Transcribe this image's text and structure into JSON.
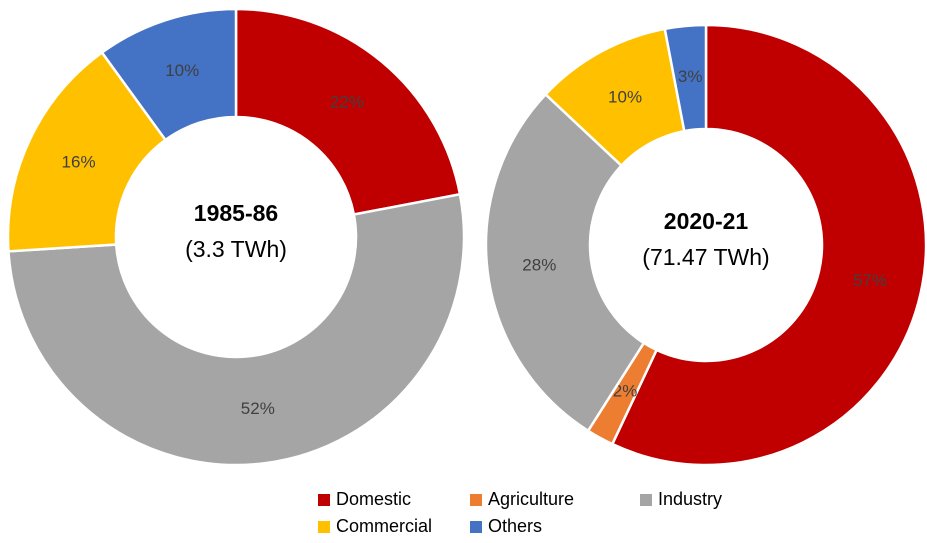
{
  "chart_data": [
    {
      "type": "pie",
      "title": "1985-86",
      "subtitle": "(3.3 TWh)",
      "categories": [
        "Domestic",
        "Industry",
        "Commercial",
        "Others"
      ],
      "values": [
        22,
        52,
        16,
        10
      ],
      "value_labels": [
        "22%",
        "52%",
        "16%",
        "10%"
      ],
      "colors": [
        "#c00000",
        "#a5a5a5",
        "#ffc000",
        "#4472c4"
      ]
    },
    {
      "type": "pie",
      "title": "2020-21",
      "subtitle": "(71.47 TWh)",
      "categories": [
        "Domestic",
        "Agriculture",
        "Industry",
        "Commercial",
        "Others"
      ],
      "values": [
        57,
        2,
        28,
        10,
        3
      ],
      "value_labels": [
        "57%",
        "2%",
        "28%",
        "10%",
        "3%"
      ],
      "colors": [
        "#c00000",
        "#ed7d31",
        "#a5a5a5",
        "#ffc000",
        "#4472c4"
      ]
    }
  ]
}
